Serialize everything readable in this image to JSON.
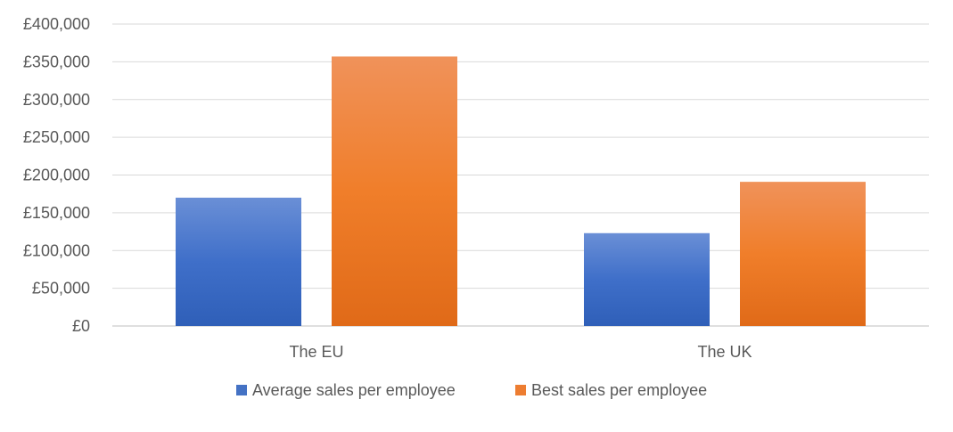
{
  "chart_data": {
    "type": "bar",
    "title": "",
    "xlabel": "",
    "ylabel": "",
    "categories": [
      "The EU",
      "The UK"
    ],
    "series": [
      {
        "name": "Average sales per employee",
        "values": [
          170000,
          123000
        ],
        "color": "#4472C4"
      },
      {
        "name": "Best sales per employee",
        "values": [
          357000,
          191000
        ],
        "color": "#ED7D31"
      }
    ],
    "ylim": [
      0,
      400000
    ],
    "y_ticks": [
      0,
      50000,
      100000,
      150000,
      200000,
      250000,
      300000,
      350000,
      400000
    ],
    "y_tick_labels": [
      "£0",
      "£50,000",
      "£100,000",
      "£150,000",
      "£200,000",
      "£250,000",
      "£300,000",
      "£350,000",
      "£400,000"
    ],
    "grid": true,
    "legend_position": "bottom"
  }
}
